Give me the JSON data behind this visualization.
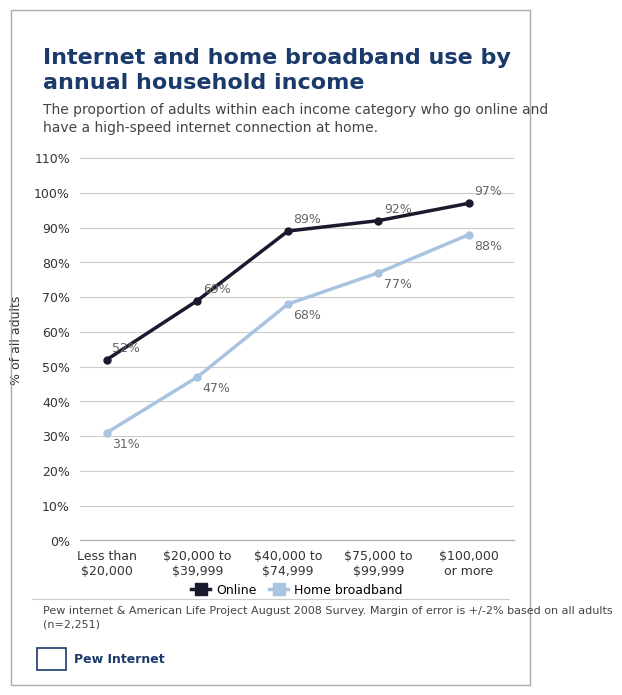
{
  "title": "Internet and home broadband use by\nannual household income",
  "subtitle": "The proportion of adults within each income category who go online and\nhave a high-speed internet connection at home.",
  "categories": [
    "Less than\n$20,000",
    "$20,000 to\n$39,999",
    "$40,000 to\n$74,999",
    "$75,000 to\n$99,999",
    "$100,000\nor more"
  ],
  "online_values": [
    52,
    69,
    89,
    92,
    97
  ],
  "broadband_values": [
    31,
    47,
    68,
    77,
    88
  ],
  "online_labels": [
    "52%",
    "69%",
    "89%",
    "92%",
    "97%"
  ],
  "broadband_labels": [
    "31%",
    "47%",
    "68%",
    "77%",
    "88%"
  ],
  "online_color": "#1a1a2e",
  "broadband_color": "#a8c4e0",
  "online_legend": "Online",
  "broadband_legend": "Home broadband",
  "ylabel": "% of all adults",
  "ylim": [
    0,
    115
  ],
  "yticks": [
    0,
    10,
    20,
    30,
    40,
    50,
    60,
    70,
    80,
    90,
    100,
    110
  ],
  "ytick_labels": [
    "0%",
    "10%",
    "20%",
    "30%",
    "40%",
    "50%",
    "60%",
    "70%",
    "80%",
    "90%",
    "100%",
    "110%"
  ],
  "background_color": "#ffffff",
  "title_color": "#1a3a6b",
  "subtitle_color": "#444444",
  "footnote": "Pew internet & American Life Project August 2008 Survey. Margin of error is +/-2% based on all adults\n(n=2,251)",
  "title_fontsize": 16,
  "subtitle_fontsize": 10,
  "footnote_fontsize": 8,
  "grid_color": "#cccccc",
  "label_fontsize": 9
}
